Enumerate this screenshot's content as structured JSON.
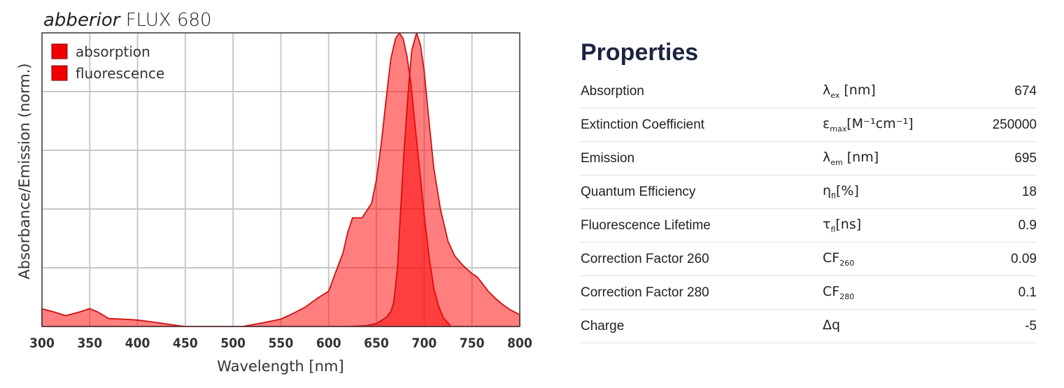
{
  "chart_data": {
    "type": "area",
    "title_italic": "abberior",
    "title_rest": "FLUX 680",
    "xlabel": "Wavelength [nm]",
    "ylabel": "Absorbance/Emission (norm.)",
    "xlim": [
      300,
      800
    ],
    "ylim": [
      0,
      1
    ],
    "xticks": [
      300,
      350,
      400,
      450,
      500,
      550,
      600,
      650,
      700,
      750,
      800
    ],
    "yticks": [
      0,
      0.2,
      0.4,
      0.6,
      0.8,
      1.0
    ],
    "grid": true,
    "legend_position": "top-left",
    "series": [
      {
        "name": "absorption",
        "color": "#ff0000",
        "x": [
          300,
          312,
          325,
          340,
          350,
          358,
          370,
          385,
          400,
          412,
          425,
          440,
          450,
          510,
          530,
          550,
          565,
          575,
          590,
          600,
          608,
          615,
          620,
          625,
          635,
          645,
          650,
          655,
          660,
          665,
          670,
          674,
          678,
          682,
          686,
          690,
          695,
          700,
          705,
          710,
          715,
          720,
          728
        ],
        "y": [
          0.06,
          0.05,
          0.037,
          0.05,
          0.061,
          0.05,
          0.027,
          0.025,
          0.022,
          0.017,
          0.011,
          0.004,
          0,
          0,
          0.012,
          0.025,
          0.048,
          0.065,
          0.1,
          0.12,
          0.19,
          0.25,
          0.32,
          0.37,
          0.37,
          0.42,
          0.5,
          0.62,
          0.77,
          0.91,
          0.98,
          1.0,
          0.98,
          0.92,
          0.83,
          0.7,
          0.54,
          0.38,
          0.24,
          0.13,
          0.07,
          0.03,
          0
        ]
      },
      {
        "name": "fluorescence",
        "color": "#ff0000",
        "x": [
          620,
          640,
          650,
          660,
          665,
          668,
          672,
          675,
          679,
          683,
          687,
          692,
          696,
          700,
          705,
          710,
          717,
          725,
          732,
          740,
          750,
          755,
          760,
          767,
          775,
          782,
          790,
          800
        ],
        "y": [
          0,
          0.003,
          0.01,
          0.03,
          0.05,
          0.08,
          0.2,
          0.38,
          0.6,
          0.79,
          0.94,
          1.0,
          0.96,
          0.87,
          0.7,
          0.54,
          0.4,
          0.29,
          0.24,
          0.21,
          0.18,
          0.17,
          0.15,
          0.12,
          0.094,
          0.075,
          0.057,
          0.04
        ]
      }
    ]
  },
  "properties": {
    "heading": "Properties",
    "rows": [
      {
        "label": "Absorption",
        "sym": "λ",
        "sub": "ex",
        "sup": "",
        "unit": " [nm]",
        "value": "674"
      },
      {
        "label": "Extinction Coefficient",
        "sym": "ε",
        "sub": "max",
        "sup": "",
        "unit": "[M⁻¹cm⁻¹]",
        "value": "250000"
      },
      {
        "label": "Emission",
        "sym": "λ",
        "sub": "em",
        "sup": "",
        "unit": " [nm]",
        "value": "695"
      },
      {
        "label": "Quantum Efficiency",
        "sym": "η",
        "sub": "fl",
        "sup": "",
        "unit": "[%]",
        "value": "18"
      },
      {
        "label": "Fluorescence Lifetime",
        "sym": "τ",
        "sub": "fl",
        "sup": "",
        "unit": "[ns]",
        "value": "0.9"
      },
      {
        "label": "Correction Factor 260",
        "sym": "CF",
        "sub": "260",
        "sup": "",
        "unit": "",
        "value": "0.09"
      },
      {
        "label": "Correction Factor 280",
        "sym": "CF",
        "sub": "280",
        "sup": "",
        "unit": "",
        "value": "0.1"
      },
      {
        "label": "Charge",
        "sym": "Δq",
        "sub": "",
        "sup": "",
        "unit": "",
        "value": "-5"
      }
    ]
  }
}
